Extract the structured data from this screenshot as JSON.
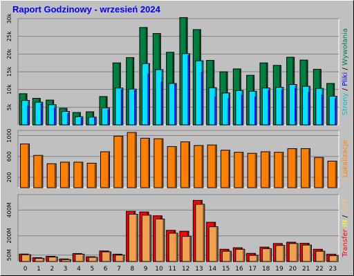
{
  "title": "Raport Godzinowy -  wrzesień 2024",
  "right_labels": {
    "top": [
      {
        "text": "Strony",
        "color": "#00c0c0"
      },
      {
        "text": " / ",
        "color": "#000000"
      },
      {
        "text": "Pliki",
        "color": "#0000ff"
      },
      {
        "text": " / ",
        "color": "#000000"
      },
      {
        "text": "Wywołania",
        "color": "#008040"
      }
    ],
    "middle": [
      {
        "text": "Lokalizacje",
        "color": "#ff8000"
      }
    ],
    "bottom": [
      {
        "text": "Transfer",
        "color": "#ff0000"
      },
      {
        "text": " IN ",
        "color": "#ffff00"
      },
      {
        "text": "/",
        "color": "#000000"
      },
      {
        "text": " OUT",
        "color": "#ffc080"
      }
    ]
  },
  "colors": {
    "hits": "#008040",
    "files": "#0000ff",
    "pages": "#00c0c0",
    "pages_fill": "#00e0ff",
    "sites": "#ff8000",
    "kb_in": "#ff0000",
    "kb_out": "#ffc080",
    "kb_out_fill": "#f0a050"
  },
  "chart_data": [
    {
      "type": "bar",
      "categories": [
        "0",
        "1",
        "2",
        "3",
        "4",
        "5",
        "6",
        "7",
        "8",
        "9",
        "10",
        "11",
        "12",
        "13",
        "14",
        "15",
        "16",
        "17",
        "18",
        "19",
        "20",
        "21",
        "22",
        "23"
      ],
      "ylim": [
        0,
        30000
      ],
      "yticks": [
        5000,
        10000,
        15000,
        20000,
        25000,
        30000
      ],
      "ytick_labels": [
        "5k",
        "10k",
        "15k",
        "20k",
        "25k",
        "30k"
      ],
      "series": [
        {
          "name": "Wywołania",
          "values": [
            8800,
            7500,
            7000,
            4700,
            3500,
            3700,
            8000,
            17500,
            19000,
            27500,
            25800,
            20500,
            30300,
            26900,
            18200,
            15000,
            15800,
            14000,
            17500,
            16800,
            19100,
            18300,
            15700,
            11700
          ]
        },
        {
          "name": "Pliki",
          "values": [
            5500,
            6000,
            4800,
            3300,
            2000,
            2000,
            4300,
            10000,
            9800,
            14500,
            12200,
            11500,
            19600,
            15000,
            8000,
            7500,
            8500,
            8000,
            9800,
            9800,
            10500,
            9300,
            8600,
            7500
          ]
        },
        {
          "name": "Strony",
          "values": [
            6900,
            6400,
            5700,
            3800,
            2300,
            2200,
            4800,
            10400,
            10100,
            17300,
            15600,
            11700,
            20100,
            18100,
            10500,
            9000,
            9700,
            9500,
            10400,
            10600,
            11400,
            10900,
            10300,
            8100
          ]
        }
      ]
    },
    {
      "type": "bar",
      "categories": [
        "0",
        "1",
        "2",
        "3",
        "4",
        "5",
        "6",
        "7",
        "8",
        "9",
        "10",
        "11",
        "12",
        "13",
        "14",
        "15",
        "16",
        "17",
        "18",
        "19",
        "20",
        "21",
        "22",
        "23"
      ],
      "ylim": [
        0,
        1100
      ],
      "yticks": [
        200,
        600,
        1000
      ],
      "ytick_labels": [
        "200",
        "600",
        "1000"
      ],
      "series": [
        {
          "name": "Lokalizacje",
          "values": [
            840,
            620,
            460,
            490,
            490,
            470,
            690,
            990,
            1060,
            950,
            940,
            790,
            880,
            810,
            820,
            720,
            680,
            660,
            690,
            680,
            750,
            750,
            580,
            510
          ]
        }
      ]
    },
    {
      "type": "bar",
      "categories": [
        "0",
        "1",
        "2",
        "3",
        "4",
        "5",
        "6",
        "7",
        "8",
        "9",
        "10",
        "11",
        "12",
        "13",
        "14",
        "15",
        "16",
        "17",
        "18",
        "19",
        "20",
        "21",
        "22",
        "23"
      ],
      "ylim": [
        0,
        520
      ],
      "yticks": [
        50,
        200,
        400
      ],
      "ytick_labels": [
        "50M",
        "200M",
        "400M"
      ],
      "series": [
        {
          "name": "Transfer IN",
          "values": [
            58,
            30,
            40,
            20,
            62,
            37,
            82,
            57,
            390,
            385,
            355,
            242,
            235,
            475,
            305,
            95,
            107,
            63,
            112,
            140,
            150,
            142,
            95,
            57
          ]
        },
        {
          "name": "Transfer OUT",
          "values": [
            53,
            25,
            35,
            15,
            57,
            33,
            75,
            50,
            367,
            360,
            330,
            220,
            195,
            445,
            270,
            80,
            95,
            48,
            100,
            125,
            140,
            128,
            80,
            45
          ]
        }
      ]
    }
  ]
}
